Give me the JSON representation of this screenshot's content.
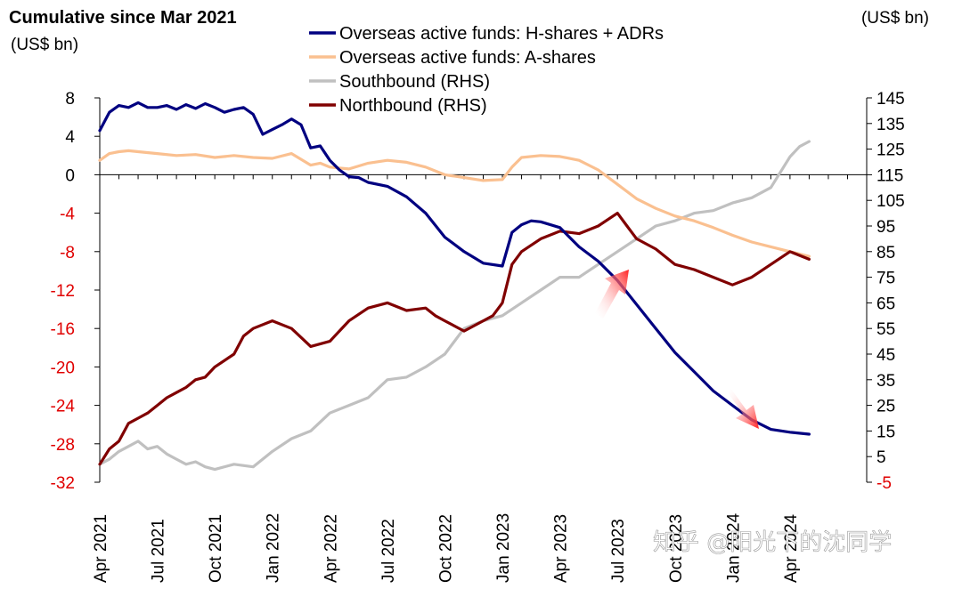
{
  "chart_data": {
    "type": "line",
    "title": "Cumulative since Mar 2021",
    "left_unit": "(US$ bn)",
    "right_unit": "(US$ bn)",
    "left_axis": {
      "ylim": [
        -32,
        8
      ],
      "ticks": [
        8,
        4,
        0,
        -4,
        -8,
        -12,
        -16,
        -20,
        -24,
        -28,
        -32
      ],
      "tick_labels": [
        "8",
        "4",
        "0",
        "-4",
        "-8",
        "-12",
        "-16",
        "-20",
        "-24",
        "-28",
        "-32"
      ],
      "positive_color": "#000000",
      "negative_color": "#e00000"
    },
    "right_axis": {
      "ylim": [
        -5,
        145
      ],
      "ticks": [
        145,
        135,
        125,
        115,
        105,
        95,
        85,
        75,
        65,
        55,
        45,
        35,
        25,
        15,
        5,
        -5
      ],
      "tick_labels": [
        "145",
        "135",
        "125",
        "115",
        "105",
        "95",
        "85",
        "75",
        "65",
        "55",
        "45",
        "35",
        "25",
        "15",
        "5",
        "-5"
      ],
      "positive_color": "#000000",
      "negative_color": "#e00000"
    },
    "x_axis": {
      "unit": "months since Apr 2021",
      "xlim": [
        0,
        40
      ],
      "ticks": [
        0,
        3,
        6,
        9,
        12,
        15,
        18,
        21,
        24,
        27,
        30,
        33,
        36
      ],
      "tick_labels": [
        "Apr 2021",
        "Jul 2021",
        "Oct 2021",
        "Jan 2022",
        "Apr 2022",
        "Jul 2022",
        "Oct 2022",
        "Jan 2023",
        "Apr 2023",
        "Jul 2023",
        "Oct 2023",
        "Jan 2024",
        "Apr 2024"
      ]
    },
    "series": [
      {
        "name": "Overseas active funds: H-shares + ADRs",
        "axis": "left",
        "color": "#000080",
        "x": [
          0,
          0.5,
          1,
          1.5,
          2,
          2.5,
          3,
          3.5,
          4,
          4.5,
          5,
          5.5,
          6,
          6.5,
          7,
          7.5,
          8,
          8.5,
          9,
          9.5,
          10,
          10.5,
          11,
          11.5,
          12,
          12.5,
          13,
          13.5,
          14,
          15,
          16,
          17,
          18,
          19,
          20,
          21,
          21.5,
          22,
          22.5,
          23,
          24,
          25,
          26,
          27,
          28,
          29,
          30,
          31,
          32,
          33,
          34,
          35,
          36,
          37
        ],
        "values": [
          4.6,
          6.5,
          7.2,
          7.0,
          7.5,
          7.0,
          7.0,
          7.2,
          6.8,
          7.3,
          6.9,
          7.4,
          7.0,
          6.5,
          6.8,
          7.0,
          6.3,
          4.2,
          4.7,
          5.2,
          5.8,
          5.2,
          2.8,
          3.0,
          1.5,
          0.5,
          -0.2,
          -0.3,
          -0.8,
          -1.2,
          -2.3,
          -4.0,
          -6.5,
          -8.0,
          -9.2,
          -9.5,
          -6.0,
          -5.2,
          -4.8,
          -4.9,
          -5.5,
          -7.5,
          -9.0,
          -11.0,
          -13.5,
          -16.0,
          -18.5,
          -20.5,
          -22.5,
          -24.0,
          -25.5,
          -26.5,
          -26.8,
          -27.0
        ]
      },
      {
        "name": "Overseas active funds: A-shares",
        "axis": "left",
        "color": "#fac090",
        "x": [
          0,
          0.5,
          1,
          1.5,
          2,
          3,
          4,
          5,
          6,
          7,
          8,
          9,
          10,
          11,
          11.5,
          12,
          13,
          14,
          15,
          16,
          17,
          18,
          19,
          20,
          21,
          21.5,
          22,
          23,
          24,
          25,
          26,
          27,
          28,
          29,
          30,
          31,
          32,
          33,
          34,
          35,
          36,
          37
        ],
        "values": [
          1.5,
          2.2,
          2.4,
          2.5,
          2.4,
          2.2,
          2.0,
          2.1,
          1.8,
          2.0,
          1.8,
          1.7,
          2.2,
          1.0,
          1.2,
          0.8,
          0.6,
          1.2,
          1.5,
          1.3,
          0.8,
          0.0,
          -0.3,
          -0.6,
          -0.5,
          0.8,
          1.8,
          2.0,
          1.9,
          1.5,
          0.5,
          -1.0,
          -2.5,
          -3.5,
          -4.3,
          -4.8,
          -5.5,
          -6.3,
          -7.0,
          -7.5,
          -8.0,
          -8.5
        ]
      },
      {
        "name": "Southbound (RHS)",
        "axis": "right",
        "color": "#c0c0c0",
        "x": [
          0,
          0.5,
          1,
          1.5,
          2,
          2.5,
          3,
          3.5,
          4,
          4.5,
          5,
          5.5,
          6,
          7,
          8,
          9,
          10,
          11,
          12,
          13,
          14,
          15,
          16,
          17,
          18,
          19,
          20,
          21,
          22,
          23,
          24,
          25,
          26,
          27,
          28,
          29,
          30,
          31,
          32,
          33,
          34,
          35,
          36,
          36.5,
          37
        ],
        "values": [
          2,
          4,
          7,
          9,
          11,
          8,
          9,
          6,
          4,
          2,
          3,
          1,
          0,
          2,
          1,
          7,
          12,
          15,
          22,
          25,
          28,
          35,
          36,
          40,
          45,
          55,
          58,
          60,
          65,
          70,
          75,
          75,
          80,
          85,
          90,
          95,
          97,
          100,
          101,
          104,
          106,
          110,
          122,
          126,
          128
        ]
      },
      {
        "name": "Northbound (RHS)",
        "axis": "right",
        "color": "#800000",
        "x": [
          0,
          0.5,
          1,
          1.5,
          2,
          2.5,
          3,
          3.5,
          4,
          4.5,
          5,
          5.5,
          6,
          7,
          7.5,
          8,
          9,
          10,
          11,
          12,
          13,
          14,
          15,
          16,
          17,
          17.5,
          18,
          19,
          20,
          20.5,
          21,
          21.5,
          22,
          23,
          24,
          25,
          26,
          27,
          27.5,
          28,
          29,
          30,
          31,
          32,
          33,
          34,
          35,
          36,
          37
        ],
        "values": [
          2,
          8,
          11,
          18,
          20,
          22,
          25,
          28,
          30,
          32,
          35,
          36,
          40,
          45,
          52,
          55,
          58,
          55,
          48,
          50,
          58,
          63,
          65,
          62,
          63,
          60,
          58,
          54,
          58,
          60,
          65,
          80,
          85,
          90,
          93,
          92,
          95,
          100,
          95,
          90,
          86,
          80,
          78,
          75,
          72,
          75,
          80,
          85,
          82
        ]
      }
    ],
    "legend_position": "top-center"
  },
  "watermark": "知乎 @阳光下的沈同学",
  "annotations": [
    {
      "name": "red-up-arrow",
      "color": "#ff0000",
      "direction": "up-right"
    },
    {
      "name": "red-down-arrow",
      "color": "#ff0000",
      "direction": "down-right"
    }
  ]
}
